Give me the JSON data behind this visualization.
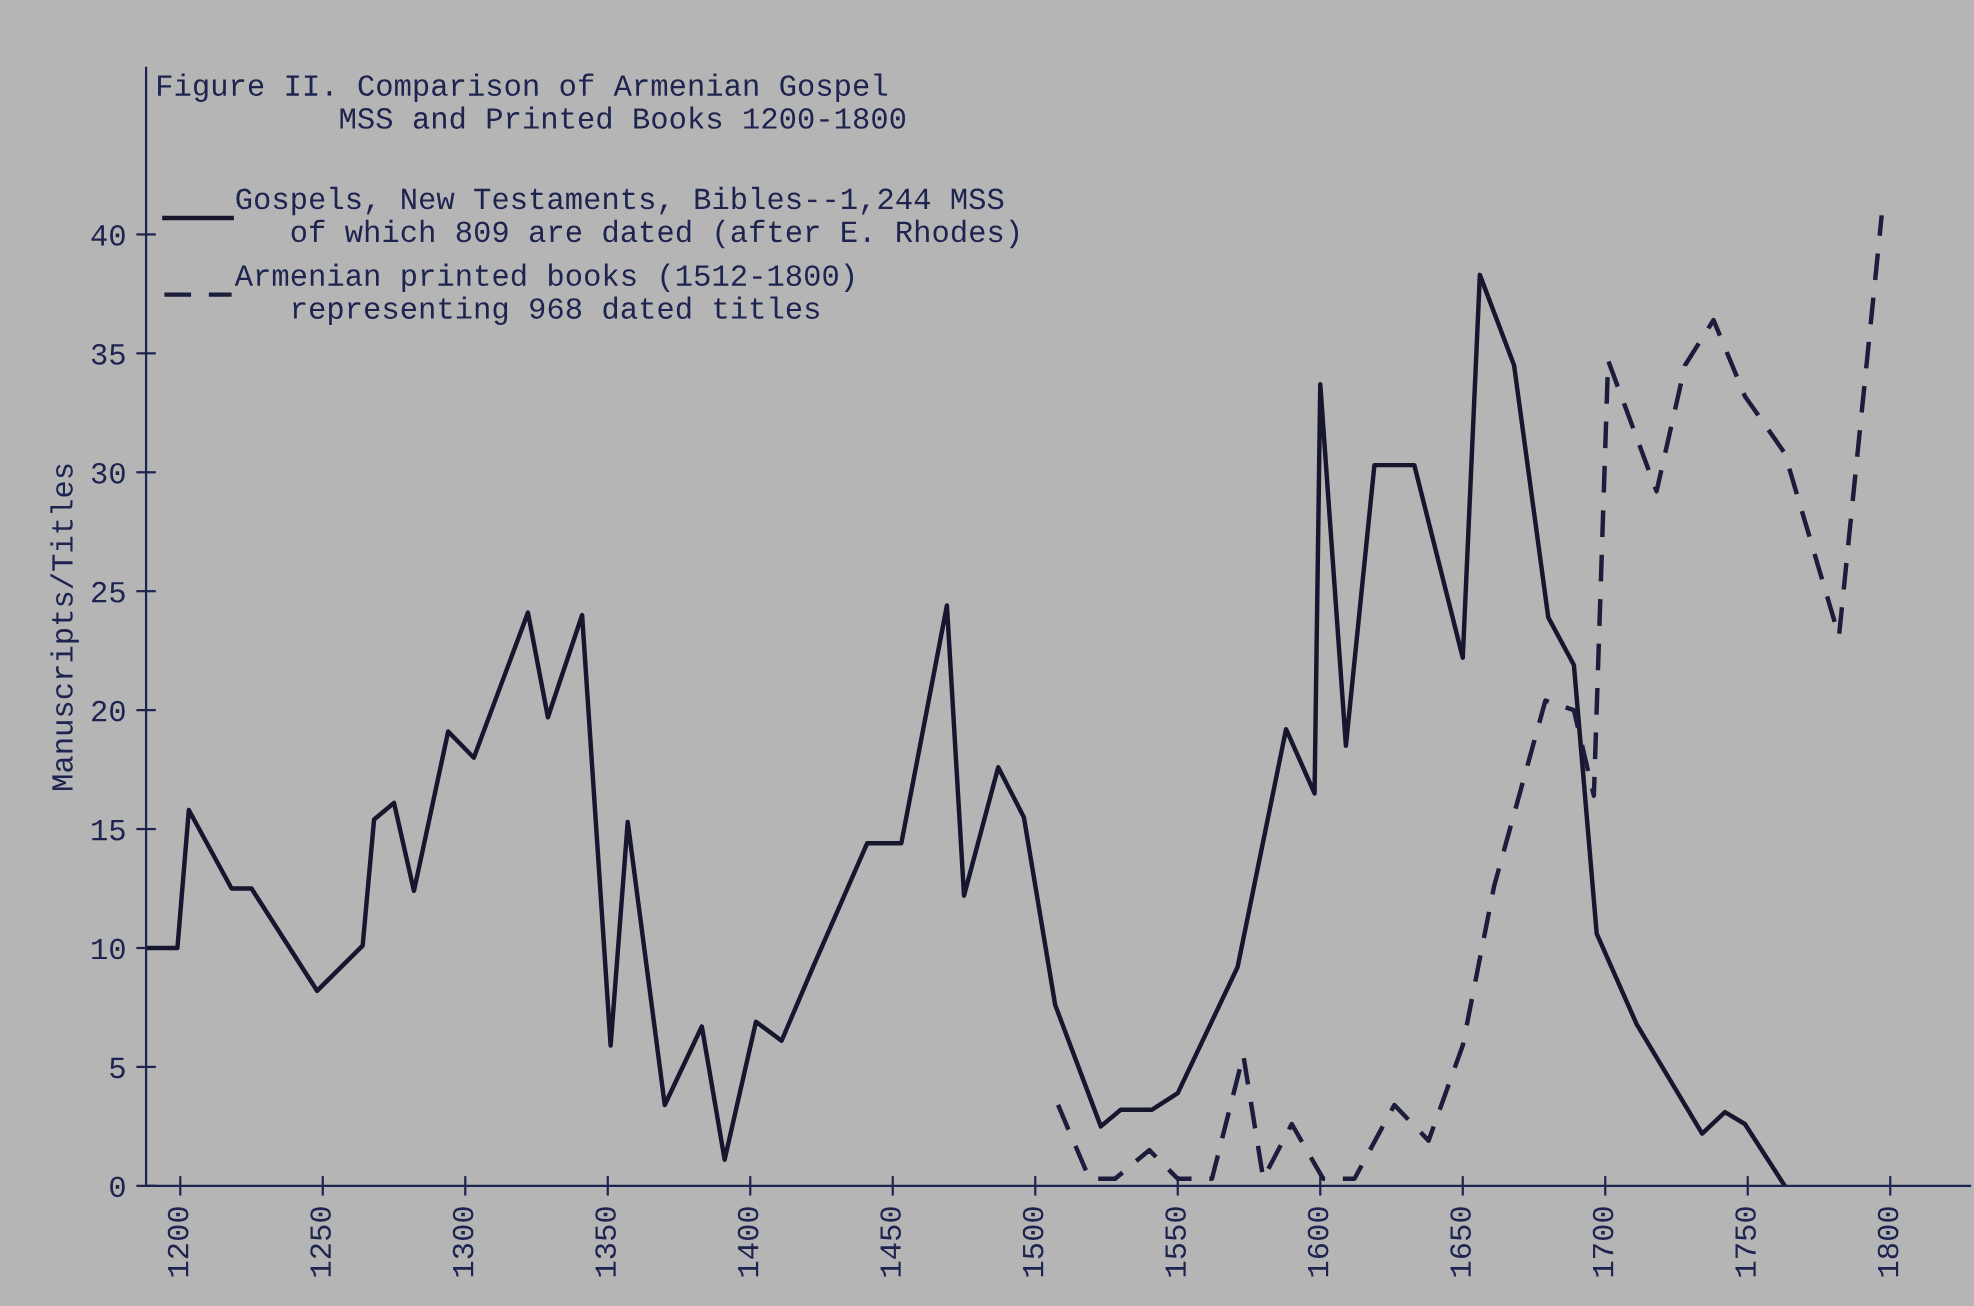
{
  "chart_data": {
    "type": "line",
    "title": "Figure II. Comparison of Armenian Gospel\n          MSS and Printed Books 1200-1800",
    "ylabel": "Manuscripts/Titles",
    "series": [
      {
        "name": "Gospels, New Testaments, Bibles--1,244 MSS\n   of which 809 are dated (after E. Rhodes)",
        "color": "#16162e",
        "line_style": "solid",
        "x": [
          1188,
          1199,
          1203,
          1218,
          1225,
          1248,
          1264,
          1268,
          1275,
          1282,
          1294,
          1303,
          1322,
          1329,
          1341,
          1351,
          1357,
          1370,
          1383,
          1391,
          1402,
          1411,
          1422,
          1441,
          1453,
          1469,
          1475,
          1487,
          1496,
          1507,
          1523,
          1530,
          1541,
          1550,
          1571,
          1588,
          1598,
          1600,
          1609,
          1619,
          1633,
          1650,
          1656,
          1668,
          1680,
          1689,
          1697,
          1711,
          1734,
          1742,
          1749,
          1763
        ],
        "values": [
          10,
          10,
          15.8,
          12.5,
          12.5,
          8.2,
          10.1,
          15.4,
          16.1,
          12.4,
          19.1,
          18,
          24.1,
          19.7,
          24,
          5.9,
          15.3,
          3.4,
          6.7,
          1.1,
          6.9,
          6.1,
          9.2,
          14.4,
          14.4,
          24.4,
          12.2,
          17.6,
          15.5,
          7.6,
          2.5,
          3.2,
          3.2,
          3.9,
          9.2,
          19.2,
          16.5,
          33.7,
          18.5,
          30.3,
          30.3,
          22.2,
          38.3,
          34.5,
          23.9,
          21.9,
          10.6,
          6.8,
          2.2,
          3.1,
          2.6,
          0
        ]
      },
      {
        "name": "Armenian printed books (1512-1800)\n   representing 968 dated titles",
        "color": "#1c1c3c",
        "line_style": "dashed",
        "x": [
          1508,
          1519,
          1528,
          1540,
          1550,
          1562,
          1573,
          1580,
          1590,
          1601,
          1612,
          1626,
          1638,
          1650,
          1661,
          1679,
          1689,
          1696,
          1701,
          1718,
          1728,
          1738,
          1749,
          1763,
          1782,
          1797
        ],
        "values": [
          3.4,
          0.3,
          0.3,
          1.5,
          0.3,
          0.3,
          5.5,
          0.3,
          2.6,
          0.3,
          0.3,
          3.4,
          1.9,
          5.9,
          12.6,
          20.4,
          20,
          16.4,
          34.7,
          29.2,
          34.5,
          36.4,
          33.2,
          30.8,
          23.1,
          40.8
        ]
      }
    ],
    "xlim": [
      1188,
      1828
    ],
    "xticks": [
      1200,
      1250,
      1300,
      1350,
      1400,
      1450,
      1500,
      1550,
      1600,
      1650,
      1700,
      1750,
      1800
    ],
    "ylim": [
      0,
      47
    ],
    "yticks": [
      0,
      5,
      10,
      15,
      20,
      25,
      30,
      35,
      40
    ],
    "grid": false,
    "legend": "top left",
    "marker": "none"
  }
}
